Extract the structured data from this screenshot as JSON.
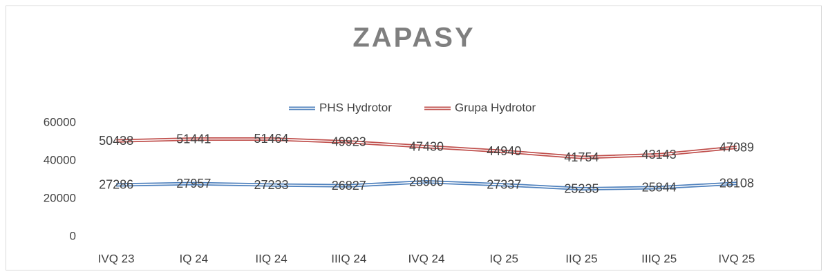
{
  "chart_data": {
    "type": "line",
    "title": "ZAPASY",
    "categories": [
      "IVQ 23",
      "IQ 24",
      "IIQ 24",
      "IIIQ 24",
      "IVQ 24",
      "IQ 25",
      "IIQ 25",
      "IIIQ 25",
      "IVQ 25"
    ],
    "series": [
      {
        "name": "PHS Hydrotor",
        "color": "#4f81bd",
        "values": [
          27286,
          27957,
          27233,
          26827,
          28900,
          27337,
          25235,
          25844,
          28108
        ]
      },
      {
        "name": "Grupa Hydrotor",
        "color": "#c0504d",
        "values": [
          50438,
          51441,
          51464,
          49923,
          47430,
          44940,
          41754,
          43143,
          47089
        ]
      }
    ],
    "ylim": [
      0,
      60000
    ],
    "yticks": [
      0,
      20000,
      40000,
      60000
    ],
    "grid": false,
    "legend": "top",
    "data_labels": true
  }
}
